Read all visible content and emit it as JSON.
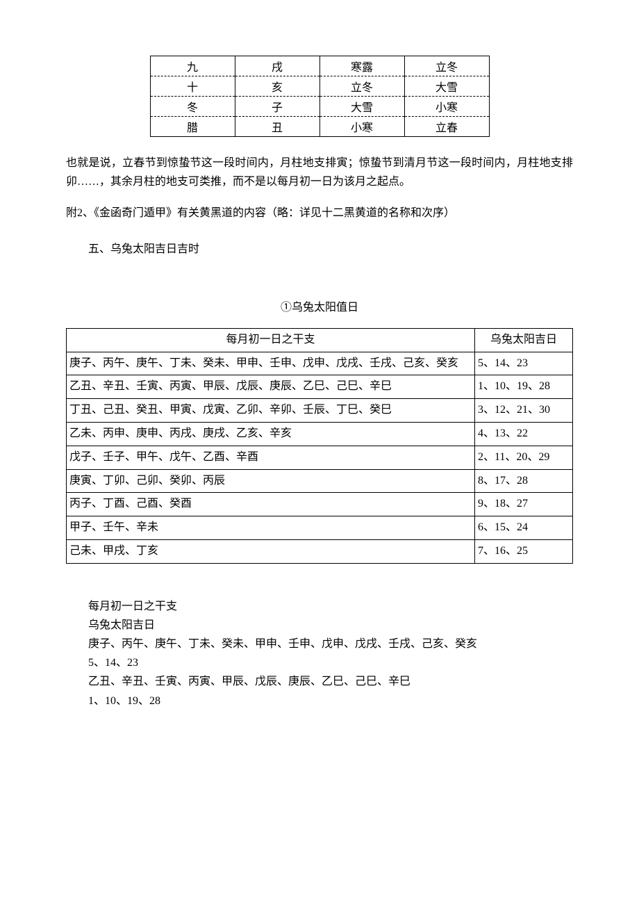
{
  "table1": {
    "rows": [
      [
        "九",
        "戌",
        "寒露",
        "立冬"
      ],
      [
        "十",
        "亥",
        "立冬",
        "大雪"
      ],
      [
        "冬",
        "子",
        "大雪",
        "小寒"
      ],
      [
        "腊",
        "丑",
        "小寒",
        "立春"
      ]
    ]
  },
  "para1": "也就是说，立春节到惊蛰节这一段时间内，月柱地支排寅；惊蛰节到清月节这一段时间内，月柱地支排卯……，其余月柱的地支可类推，而不是以每月初一日为该月之起点。",
  "para2": "附2、《金函奇门遁甲》有关黄黑道的内容（略：详见十二黑黄道的名称和次序）",
  "section5_title": "五、乌兔太阳吉日吉时",
  "heading1": "①乌兔太阳值日",
  "table2": {
    "header": [
      "每月初一日之干支",
      "乌兔太阳吉日"
    ],
    "rows": [
      [
        "庚子、丙午、庚午、丁未、癸未、甲申、壬申、戊申、戊戌、壬戌、己亥、癸亥",
        "5、14、23"
      ],
      [
        "乙丑、辛丑、壬寅、丙寅、甲辰、戊辰、庚辰、乙巳、己巳、辛巳",
        "1、10、19、28"
      ],
      [
        "丁丑、己丑、癸丑、甲寅、戊寅、乙卯、辛卯、壬辰、丁巳、癸巳",
        "3、12、21、30"
      ],
      [
        "乙未、丙申、庚申、丙戌、庚戌、乙亥、辛亥",
        "4、13、22"
      ],
      [
        "戊子、壬子、甲午、戊午、乙酉、辛酉",
        "2、11、20、29"
      ],
      [
        "庚寅、丁卯、己卯、癸卯、丙辰",
        "8、17、28"
      ],
      [
        "丙子、丁酉、己酉、癸酉",
        "9、18、27"
      ],
      [
        "甲子、壬午、辛未",
        "6、15、24"
      ],
      [
        "己未、甲戌、丁亥",
        "7、16、25"
      ]
    ]
  },
  "textlist": [
    "每月初一日之干支",
    "乌兔太阳吉日",
    "庚子、丙午、庚午、丁未、癸未、甲申、壬申、戊申、戊戌、壬戌、己亥、癸亥",
    "5、14、23",
    "乙丑、辛丑、壬寅、丙寅、甲辰、戊辰、庚辰、乙巳、己巳、辛巳",
    "1、10、19、28"
  ]
}
